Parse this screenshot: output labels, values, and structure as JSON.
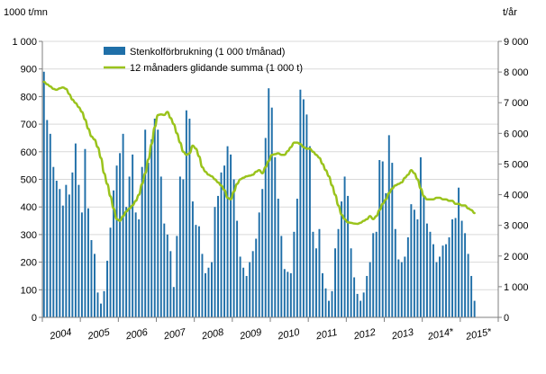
{
  "colors": {
    "bar": "#1f6fa8",
    "line": "#9ac31c",
    "axis": "#7f7f7f"
  },
  "chart_data": {
    "type": "bar",
    "title": "",
    "left_unit": "1000 t/mn",
    "right_unit": "t/år",
    "ylim": [
      0,
      1000
    ],
    "y2lim": [
      0,
      9000
    ],
    "y_ticks": [
      "0",
      "100",
      "200",
      "300",
      "400",
      "500",
      "600",
      "700",
      "800",
      "900",
      "1 000"
    ],
    "y2_ticks": [
      "0",
      "1 000",
      "2 000",
      "3 000",
      "4 000",
      "5 000",
      "6 000",
      "7 000",
      "8 000",
      "9 000"
    ],
    "x_tick_labels": [
      "2004",
      "2005",
      "2006",
      "2007",
      "2008",
      "2009",
      "2010",
      "2011",
      "2012",
      "2013",
      "2014*",
      "2015*"
    ],
    "legend_position": "top-center",
    "series": [
      {
        "name": "Stenkolförbrukning (1 000 t/månad)",
        "type": "bar",
        "axis": "left",
        "values": [
          890,
          715,
          665,
          545,
          495,
          465,
          405,
          480,
          445,
          525,
          630,
          480,
          380,
          610,
          395,
          280,
          230,
          90,
          50,
          95,
          205,
          325,
          460,
          550,
          595,
          665,
          400,
          510,
          590,
          380,
          355,
          545,
          680,
          560,
          645,
          720,
          680,
          510,
          340,
          300,
          240,
          110,
          295,
          510,
          500,
          750,
          720,
          420,
          335,
          330,
          230,
          160,
          180,
          200,
          400,
          440,
          525,
          550,
          620,
          590,
          500,
          350,
          220,
          180,
          150,
          200,
          240,
          285,
          380,
          465,
          650,
          830,
          760,
          580,
          430,
          295,
          175,
          165,
          160,
          310,
          430,
          825,
          790,
          735,
          620,
          310,
          250,
          320,
          160,
          105,
          60,
          95,
          250,
          320,
          420,
          510,
          440,
          250,
          145,
          85,
          60,
          90,
          150,
          200,
          305,
          310,
          570,
          565,
          450,
          660,
          560,
          320,
          210,
          200,
          220,
          290,
          410,
          390,
          355,
          580,
          440,
          340,
          310,
          265,
          200,
          220,
          260,
          265,
          290,
          355,
          360,
          470,
          350,
          305,
          230,
          150,
          60
        ]
      },
      {
        "name": "12 månaders glidande summa (1 000 t)",
        "type": "line",
        "axis": "right",
        "values": [
          7680,
          7600,
          7530,
          7450,
          7420,
          7470,
          7500,
          7450,
          7280,
          7100,
          6990,
          6850,
          6700,
          6450,
          6150,
          5900,
          5800,
          5550,
          5200,
          4700,
          4350,
          3950,
          3550,
          3200,
          3150,
          3300,
          3450,
          3550,
          3650,
          3800,
          4000,
          4350,
          4700,
          5150,
          5650,
          6200,
          6600,
          6620,
          6600,
          6700,
          6500,
          6300,
          6000,
          5700,
          5400,
          5300,
          5350,
          5600,
          5500,
          5250,
          4900,
          4750,
          4650,
          4600,
          4500,
          4400,
          4300,
          4150,
          3900,
          3850,
          4100,
          4350,
          4500,
          4550,
          4600,
          4620,
          4650,
          4750,
          4800,
          4700,
          4900,
          5100,
          5300,
          5320,
          5350,
          5300,
          5300,
          5420,
          5550,
          5700,
          5700,
          5650,
          5550,
          5500,
          5500,
          5400,
          5300,
          5200,
          5000,
          4800,
          4600,
          4300,
          4000,
          3650,
          3350,
          3200,
          3100,
          3080,
          3060,
          3050,
          3080,
          3150,
          3200,
          3300,
          3200,
          3300,
          3500,
          3700,
          3850,
          4050,
          4200,
          4300,
          4350,
          4400,
          4550,
          4650,
          4800,
          4700,
          4500,
          4200,
          3950,
          3850,
          3850,
          3850,
          3900,
          3900,
          3850,
          3850,
          3800,
          3800,
          3700,
          3700,
          3650,
          3650,
          3550,
          3500,
          3400
        ]
      }
    ]
  }
}
